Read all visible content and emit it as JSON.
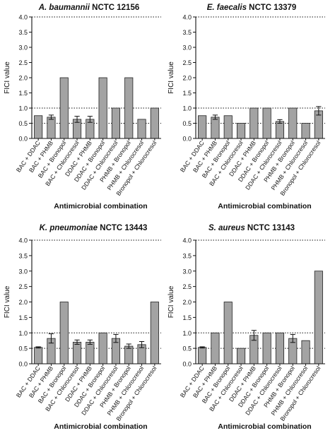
{
  "chart_data": [
    {
      "type": "bar",
      "title_italic": "A. baumannii",
      "title_rest": " NCTC 12156",
      "xlabel": "Antimicrobial combination",
      "ylabel": "FICI value",
      "ylim": [
        0,
        4
      ],
      "yticks": [
        "0.0",
        "0.5",
        "1.0",
        "1.5",
        "2.0",
        "2.5",
        "3.0",
        "3.5",
        "4.0"
      ],
      "reference_lines": [
        0.5,
        1.0,
        4.0
      ],
      "categories": [
        "BAC + DDAC",
        "BAC + PHMB",
        "BAC + Bronopol",
        "BAC + Chlorocresol",
        "DDAC + PHMB",
        "DDAC + Bronopol",
        "DDAC + Chlorocresol",
        "PHMB + Bronopol",
        "PHMB + Chlorocresol",
        "Bronopol + Chlorocresol"
      ],
      "values": [
        0.75,
        0.7,
        2.0,
        0.63,
        0.63,
        2.0,
        1.0,
        2.0,
        0.63,
        1.0
      ],
      "errors": [
        0,
        0.07,
        0,
        0.1,
        0.1,
        0,
        0,
        0,
        0,
        0
      ]
    },
    {
      "type": "bar",
      "title_italic": "E. faecalis",
      "title_rest": " NCTC 13379",
      "xlabel": "Antimicrobial combination",
      "ylabel": "FICI value",
      "ylim": [
        0,
        4
      ],
      "yticks": [
        "0.0",
        "0.5",
        "1.0",
        "1.5",
        "2.0",
        "2.5",
        "3.0",
        "3.5",
        "4.0"
      ],
      "reference_lines": [
        0.5,
        1.0,
        4.0
      ],
      "categories": [
        "BAC + DDAC",
        "BAC + PHMB",
        "BAC + Bronopol",
        "BAC + Chlorocresol",
        "DDAC + PHMB",
        "DDAC + Bronopol",
        "DDAC + Chlorocresol",
        "PHMB + Bronopol",
        "PHMB + Chlorocresol",
        "Bronopol + Chlorocresol"
      ],
      "values": [
        0.75,
        0.7,
        0.75,
        0.5,
        1.0,
        1.0,
        0.56,
        1.0,
        0.5,
        0.91
      ],
      "errors": [
        0,
        0.07,
        0,
        0,
        0,
        0,
        0.06,
        0,
        0,
        0.14
      ]
    },
    {
      "type": "bar",
      "title_italic": "K. pneumoniae",
      "title_rest": " NCTC 13443",
      "xlabel": "Antimicrobial combination",
      "ylabel": "FICI value",
      "ylim": [
        0,
        4
      ],
      "yticks": [
        "0.0",
        "0.5",
        "1.0",
        "1.5",
        "2.0",
        "2.5",
        "3.0",
        "3.5",
        "4.0"
      ],
      "reference_lines": [
        0.5,
        1.0,
        4.0
      ],
      "categories": [
        "BAC + DDAC",
        "BAC + PHMB",
        "BAC + Bronopol",
        "BAC + Chlorocresol",
        "DDAC + PHMB",
        "DDAC + Bronopol",
        "DDAC + Chlorocresol",
        "PHMB + Bronopol",
        "PHMB + Chlorocresol",
        "Bronopol + Chlorocresol"
      ],
      "values": [
        0.53,
        0.82,
        2.0,
        0.7,
        0.7,
        1.0,
        0.82,
        0.57,
        0.62,
        2.0
      ],
      "errors": [
        0.02,
        0.15,
        0,
        0.07,
        0.07,
        0,
        0.13,
        0.07,
        0.1,
        0
      ]
    },
    {
      "type": "bar",
      "title_italic": "S. aureus",
      "title_rest": " NCTC 13143",
      "xlabel": "Antimicrobial combination",
      "ylabel": "FICI value",
      "ylim": [
        0,
        4
      ],
      "yticks": [
        "0.0",
        "0.5",
        "1.0",
        "1.5",
        "2.0",
        "2.5",
        "3.0",
        "3.5",
        "4.0"
      ],
      "reference_lines": [
        0.5,
        1.0,
        4.0
      ],
      "categories": [
        "BAC + DDAC",
        "BAC + PHMB",
        "BAC + Bronopol",
        "BAC + Chlorocresol",
        "DDAC + PHMB",
        "DDAC + Bronopol",
        "DDAC + Chlorocresol",
        "PHMB + Bronopol",
        "PHMB + Chlorocresol",
        "Bronopol + Chlorocresol"
      ],
      "values": [
        0.53,
        1.0,
        2.0,
        0.5,
        0.92,
        1.0,
        1.0,
        0.82,
        0.75,
        3.0
      ],
      "errors": [
        0.02,
        0,
        0,
        0,
        0.16,
        0,
        0,
        0.13,
        0,
        0
      ]
    }
  ],
  "colors": {
    "bar_fill": "#a3a3a3",
    "bar_stroke": "#222222",
    "axis": "#111111",
    "text": "#111111"
  }
}
